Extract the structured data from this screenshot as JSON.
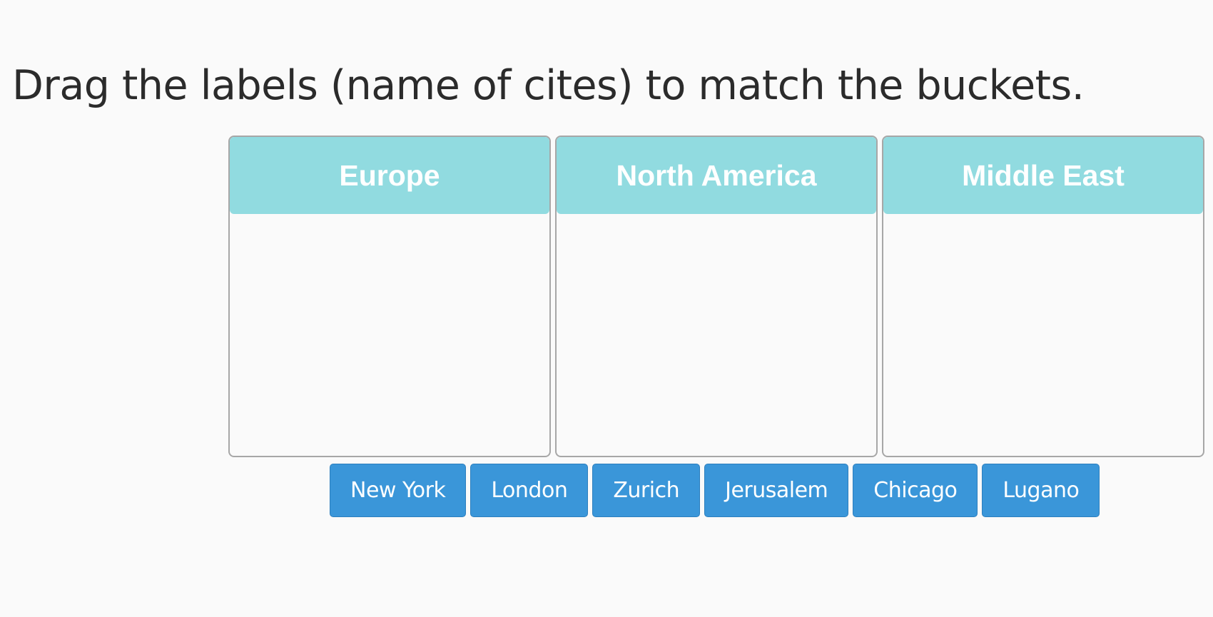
{
  "prompt": "Drag the labels (name of cites) to match the buckets.",
  "buckets": [
    {
      "title": "Europe"
    },
    {
      "title": "North America"
    },
    {
      "title": "Middle East"
    }
  ],
  "labels": [
    "New York",
    "London",
    "Zurich",
    "Jerusalem",
    "Chicago",
    "Lugano"
  ],
  "colors": {
    "bucket_header": "#91dbe0",
    "label_background": "#3a96d9",
    "page_background": "#fafafa"
  }
}
